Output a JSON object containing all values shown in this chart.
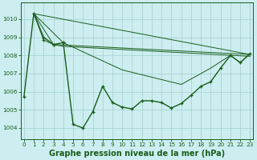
{
  "title": "Graphe pression niveau de la mer (hPa)",
  "bg_color": "#cceef0",
  "line_color": "#1a5c1a",
  "grid_color": "#aad4d4",
  "x_ticks": [
    0,
    1,
    2,
    3,
    4,
    5,
    6,
    7,
    8,
    9,
    10,
    11,
    12,
    13,
    14,
    15,
    16,
    17,
    18,
    19,
    20,
    21,
    22,
    23
  ],
  "y_ticks": [
    1004,
    1005,
    1006,
    1007,
    1008,
    1009,
    1010
  ],
  "ylim": [
    1003.4,
    1010.9
  ],
  "xlim": [
    -0.3,
    23.3
  ],
  "main_x": [
    0,
    1,
    2,
    3,
    4,
    5,
    6,
    7,
    8,
    9,
    10,
    11,
    12,
    13,
    14,
    15,
    16,
    17,
    18,
    19,
    20,
    21,
    22,
    23
  ],
  "main_y": [
    1005.7,
    1010.3,
    1009.0,
    1008.6,
    1008.7,
    1004.2,
    1004.0,
    1004.9,
    1006.3,
    1005.4,
    1005.15,
    1005.05,
    1005.5,
    1005.5,
    1005.4,
    1005.1,
    1005.35,
    1005.8,
    1006.3,
    1006.55,
    1007.3,
    1008.0,
    1007.6,
    1008.1
  ],
  "fan_lines": [
    {
      "x": [
        1,
        23
      ],
      "y": [
        1010.3,
        1008.05
      ]
    },
    {
      "x": [
        1,
        2,
        3,
        23
      ],
      "y": [
        1010.3,
        1008.85,
        1008.6,
        1008.05
      ]
    },
    {
      "x": [
        1,
        3,
        4,
        23
      ],
      "y": [
        1010.3,
        1008.6,
        1008.5,
        1007.95
      ]
    },
    {
      "x": [
        1,
        4,
        10,
        16,
        19,
        21,
        22,
        23
      ],
      "y": [
        1010.3,
        1008.7,
        1007.2,
        1006.4,
        1007.3,
        1008.0,
        1007.6,
        1008.1
      ]
    }
  ],
  "title_fontsize": 7,
  "tick_fontsize": 5.2
}
